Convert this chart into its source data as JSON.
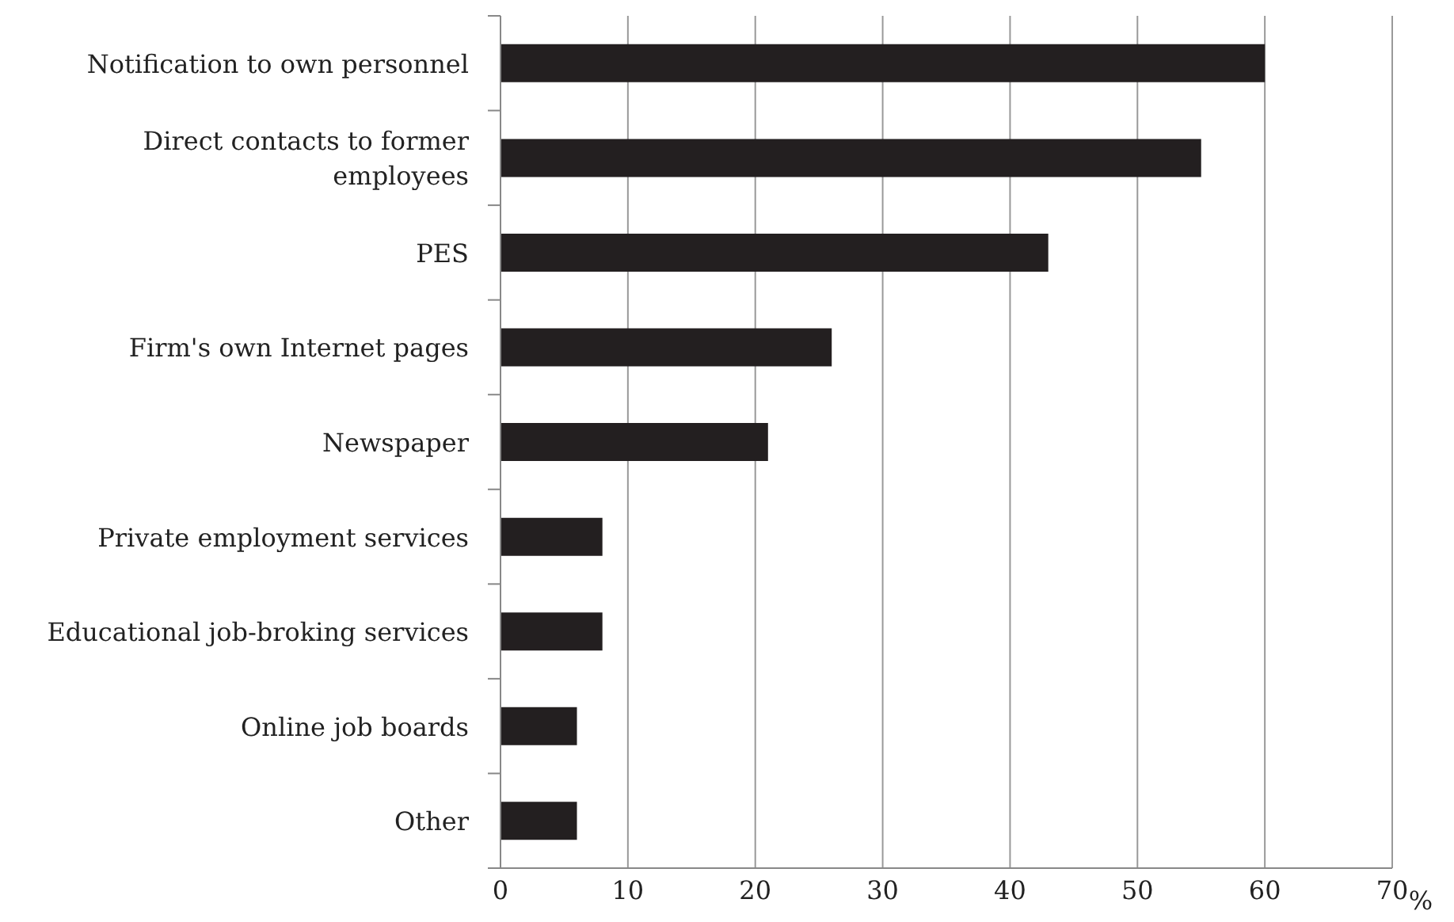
{
  "chart_data": {
    "type": "bar",
    "orientation": "horizontal",
    "xlabel": "%",
    "categories": [
      "Notification to own personnel",
      "Direct contacts to former employees",
      "PES",
      "Firm's own Internet pages",
      "Newspaper",
      "Private employment services",
      "Educational job-broking services",
      "Online job boards",
      "Other"
    ],
    "values": [
      60,
      55,
      43,
      26,
      21,
      8,
      8,
      6,
      6
    ],
    "color": "#231f20",
    "xlim": [
      0,
      70
    ],
    "xticks": [
      0,
      10,
      20,
      30,
      40,
      50,
      60,
      70
    ],
    "grid": "x"
  }
}
